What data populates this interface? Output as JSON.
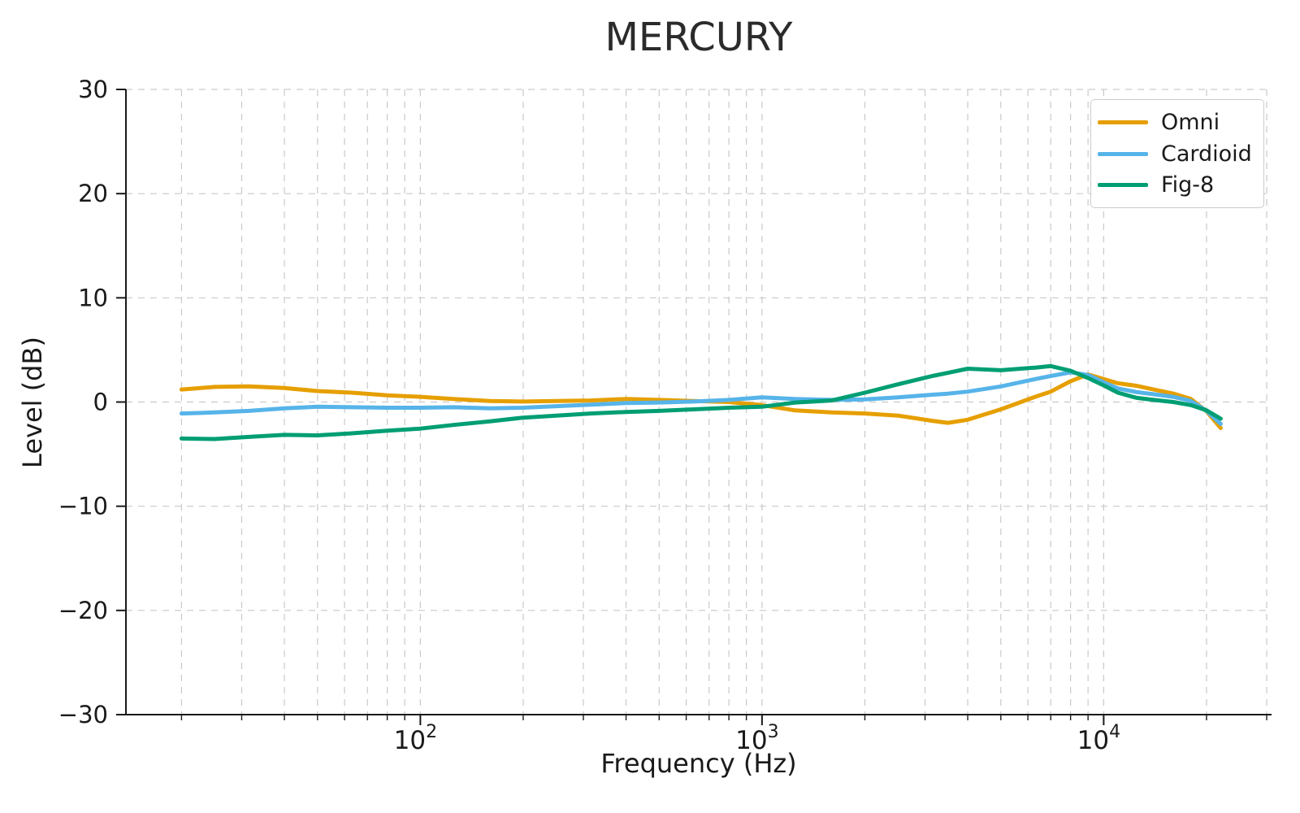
{
  "chart_data": {
    "type": "line",
    "title": "MERCURY",
    "xlabel": "Frequency (Hz)",
    "ylabel": "Level (dB)",
    "x_scale": "log",
    "xlim": [
      13.75,
      31000
    ],
    "ylim": [
      -30,
      30
    ],
    "yticks": [
      -30,
      -20,
      -10,
      0,
      10,
      20,
      30
    ],
    "xticks": [
      100,
      1000,
      10000
    ],
    "grid": "dashed gray, vertical at log minor+major ticks, horizontal at 10 dB steps",
    "legend_position": "upper right",
    "x": [
      20,
      25,
      31.5,
      40,
      50,
      63,
      80,
      100,
      125,
      160,
      200,
      250,
      315,
      400,
      500,
      630,
      800,
      1000,
      1250,
      1600,
      2000,
      2500,
      3150,
      3500,
      4000,
      5000,
      6300,
      7000,
      8000,
      9000,
      10000,
      11000,
      12500,
      14000,
      16000,
      18000,
      20000,
      22000
    ],
    "series": [
      {
        "name": "Omni",
        "color": "#E69F00",
        "values": [
          1.2,
          1.45,
          1.5,
          1.35,
          1.05,
          0.9,
          0.65,
          0.5,
          0.3,
          0.1,
          0.05,
          0.1,
          0.15,
          0.3,
          0.2,
          0.1,
          0.0,
          -0.3,
          -0.8,
          -1.0,
          -1.1,
          -1.3,
          -1.8,
          -2.0,
          -1.7,
          -0.7,
          0.5,
          1.0,
          2.0,
          2.65,
          2.2,
          1.8,
          1.55,
          1.2,
          0.8,
          0.3,
          -0.9,
          -2.5
        ]
      },
      {
        "name": "Cardioid",
        "color": "#56B4E9",
        "values": [
          -1.1,
          -1.0,
          -0.85,
          -0.6,
          -0.45,
          -0.5,
          -0.55,
          -0.55,
          -0.5,
          -0.6,
          -0.55,
          -0.4,
          -0.25,
          -0.1,
          -0.05,
          0.05,
          0.2,
          0.45,
          0.3,
          0.2,
          0.25,
          0.45,
          0.7,
          0.8,
          1.0,
          1.5,
          2.2,
          2.5,
          2.85,
          2.6,
          1.9,
          1.3,
          0.95,
          0.75,
          0.5,
          0.1,
          -0.85,
          -2.1
        ]
      },
      {
        "name": "Fig-8",
        "color": "#009E73",
        "values": [
          -3.5,
          -3.55,
          -3.35,
          -3.15,
          -3.2,
          -3.0,
          -2.75,
          -2.55,
          -2.2,
          -1.85,
          -1.5,
          -1.3,
          -1.1,
          -0.95,
          -0.85,
          -0.7,
          -0.55,
          -0.45,
          -0.05,
          0.15,
          0.9,
          1.7,
          2.5,
          2.8,
          3.2,
          3.05,
          3.3,
          3.45,
          3.0,
          2.3,
          1.6,
          0.9,
          0.4,
          0.2,
          0.0,
          -0.3,
          -0.8,
          -1.6
        ]
      }
    ]
  },
  "style": {
    "grid_color": "#c9c9c9",
    "spine_color": "#1a1a1a",
    "tick_label_color": "#1a1a1a",
    "title_color": "#2b2b2b",
    "background": "#ffffff"
  }
}
